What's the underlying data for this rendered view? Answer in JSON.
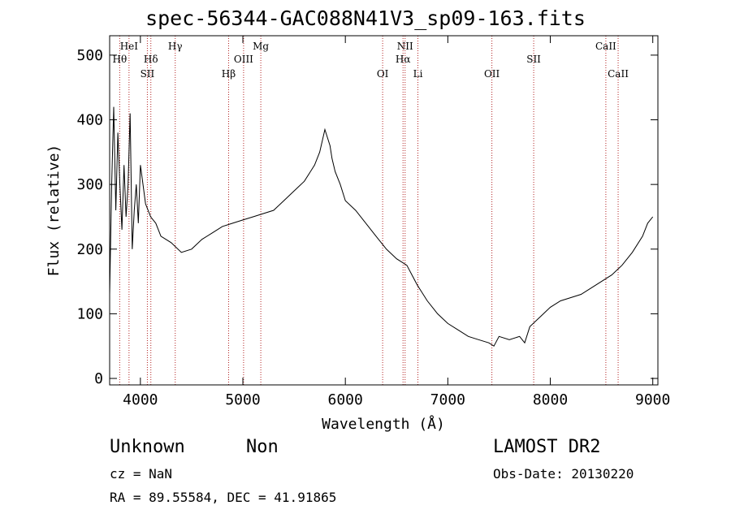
{
  "chart_data": {
    "type": "line",
    "title": "spec-56344-GAC088N41V3_sp09-163.fits",
    "xlabel": "Wavelength (Å)",
    "ylabel": "Flux (relative)",
    "xlim": [
      3700,
      9050
    ],
    "ylim": [
      -10,
      530
    ],
    "xticks": [
      4000,
      5000,
      6000,
      7000,
      8000,
      9000
    ],
    "yticks": [
      0,
      100,
      200,
      300,
      400,
      500
    ],
    "grid": false,
    "series": [
      {
        "color": "#000000",
        "x": [
          3700,
          3720,
          3740,
          3760,
          3780,
          3800,
          3820,
          3840,
          3860,
          3880,
          3900,
          3920,
          3940,
          3960,
          3980,
          4000,
          4050,
          4100,
          4150,
          4200,
          4300,
          4400,
          4500,
          4600,
          4700,
          4800,
          4900,
          5000,
          5100,
          5200,
          5300,
          5400,
          5500,
          5600,
          5700,
          5750,
          5800,
          5820,
          5850,
          5870,
          5900,
          5950,
          6000,
          6100,
          6200,
          6300,
          6400,
          6500,
          6550,
          6600,
          6650,
          6700,
          6800,
          6900,
          7000,
          7100,
          7200,
          7300,
          7400,
          7450,
          7500,
          7600,
          7700,
          7750,
          7800,
          7900,
          8000,
          8100,
          8200,
          8300,
          8400,
          8500,
          8600,
          8700,
          8800,
          8900,
          8950,
          9000
        ],
        "y": [
          130,
          300,
          420,
          260,
          380,
          300,
          230,
          330,
          250,
          300,
          410,
          200,
          260,
          300,
          240,
          330,
          270,
          250,
          240,
          220,
          210,
          195,
          200,
          215,
          225,
          235,
          240,
          245,
          250,
          255,
          260,
          275,
          290,
          305,
          330,
          350,
          385,
          375,
          360,
          340,
          320,
          300,
          275,
          260,
          240,
          220,
          200,
          185,
          180,
          175,
          160,
          145,
          120,
          100,
          85,
          75,
          65,
          60,
          55,
          50,
          65,
          60,
          65,
          55,
          80,
          95,
          110,
          120,
          125,
          130,
          140,
          150,
          160,
          175,
          195,
          220,
          240,
          250
        ]
      }
    ],
    "lines": [
      {
        "name": "Hθ",
        "x": 3798,
        "row": 2
      },
      {
        "name": "HeI",
        "x": 3889,
        "row": 1
      },
      {
        "name": "Hδ",
        "x": 4102,
        "row": 2
      },
      {
        "name": "SII",
        "x": 4068,
        "row": 3
      },
      {
        "name": "Hγ",
        "x": 4340,
        "row": 1
      },
      {
        "name": "Hβ",
        "x": 4861,
        "row": 3
      },
      {
        "name": "OIII",
        "x": 5007,
        "row": 2
      },
      {
        "name": "Mg",
        "x": 5175,
        "row": 1
      },
      {
        "name": "OI",
        "x": 6364,
        "row": 3
      },
      {
        "name": "NII",
        "x": 6583,
        "row": 1
      },
      {
        "name": "Hα",
        "x": 6563,
        "row": 2
      },
      {
        "name": "Li",
        "x": 6708,
        "row": 3
      },
      {
        "name": "OII",
        "x": 7430,
        "row": 3
      },
      {
        "name": "SII",
        "x": 7838,
        "row": 2
      },
      {
        "name": "CaII",
        "x": 8542,
        "row": 1
      },
      {
        "name": "CaII",
        "x": 8662,
        "row": 3
      }
    ]
  },
  "footer": {
    "object_class": "Unknown",
    "object_subclass": "Non",
    "redshift_text": "cz = NaN",
    "coords_text": "RA =  89.55584, DEC =  41.91865",
    "survey": "LAMOST DR2",
    "obs_date": "Obs-Date: 20130220"
  }
}
